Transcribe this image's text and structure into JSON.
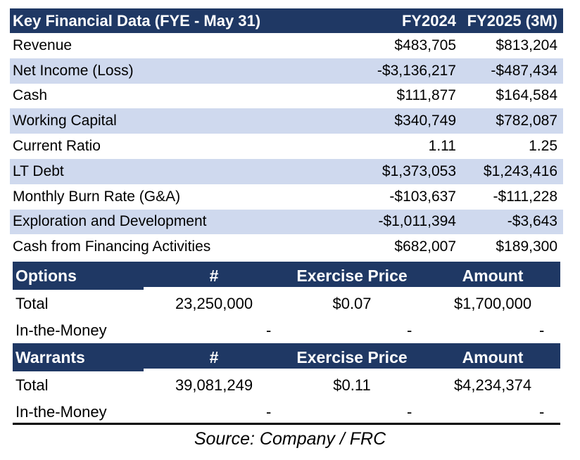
{
  "financial": {
    "header": {
      "label": "Key Financial Data (FYE - May 31)",
      "col1": "FY2024",
      "col2": "FY2025 (3M)"
    },
    "rows": [
      {
        "label": "Revenue",
        "v1": "$483,705",
        "v2": "$813,204"
      },
      {
        "label": "Net Income (Loss)",
        "v1": "-$3,136,217",
        "v2": "-$487,434"
      },
      {
        "label": "Cash",
        "v1": "$111,877",
        "v2": "$164,584"
      },
      {
        "label": "Working Capital",
        "v1": "$340,749",
        "v2": "$782,087"
      },
      {
        "label": "Current Ratio",
        "v1": "1.11",
        "v2": "1.25"
      },
      {
        "label": "LT Debt",
        "v1": "$1,373,053",
        "v2": "$1,243,416"
      },
      {
        "label": "Monthly Burn Rate (G&A)",
        "v1": "-$103,637",
        "v2": "-$111,228"
      },
      {
        "label": "Exploration and Development",
        "v1": "-$1,011,394",
        "v2": "-$3,643"
      },
      {
        "label": "Cash from Financing Activities",
        "v1": "$682,007",
        "v2": "$189,300"
      }
    ]
  },
  "options": {
    "header": {
      "label": "Options",
      "num": "#",
      "price": "Exercise Price",
      "amount": "Amount"
    },
    "total": {
      "label": "Total",
      "num": "23,250,000",
      "price": "$0.07",
      "amount": "$1,700,000"
    },
    "itm": {
      "label": "In-the-Money",
      "num": "-",
      "price": "-",
      "amount": "-"
    }
  },
  "warrants": {
    "header": {
      "label": "Warrants",
      "num": "#",
      "price": "Exercise Price",
      "amount": "Amount"
    },
    "total": {
      "label": "Total",
      "num": "39,081,249",
      "price": "$0.11",
      "amount": "$4,234,374"
    },
    "itm": {
      "label": "In-the-Money",
      "num": "-",
      "price": "-",
      "amount": "-"
    }
  },
  "source": "Source: Company /  FRC"
}
